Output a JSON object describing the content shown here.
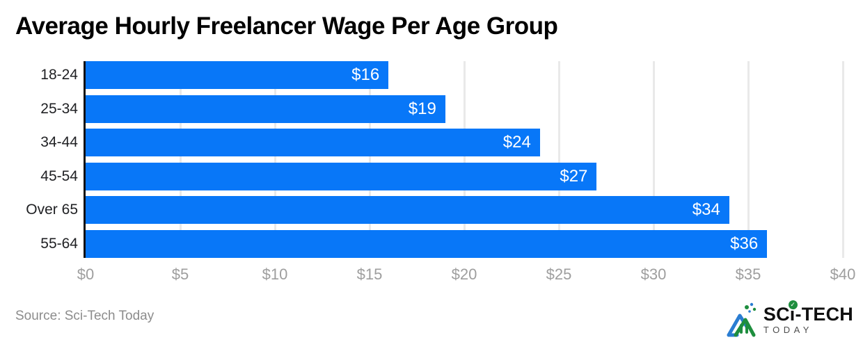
{
  "title": "Average Hourly Freelancer Wage Per Age Group",
  "source": "Source: Sci-Tech Today",
  "logo": {
    "prefix": "SC",
    "i_char": "i",
    "suffix": "-TECH",
    "subtitle": "TODAY",
    "check": "✓"
  },
  "colors": {
    "bar": "#0877f8",
    "axis": "#111111",
    "grid": "#e9e9e9",
    "tick": "#9e9e9e",
    "category": "#202124",
    "value_label": "#ffffff",
    "title": "#000000",
    "source": "#8c8c8c",
    "logo_green": "#1e8e3e",
    "logo_blue": "#2a7dd2"
  },
  "chart_data": {
    "type": "bar",
    "orientation": "horizontal",
    "title": "Average Hourly Freelancer Wage Per Age Group",
    "categories": [
      "18-24",
      "25-34",
      "34-44",
      "45-54",
      "Over 65",
      "55-64"
    ],
    "values": [
      16,
      19,
      24,
      27,
      34,
      36
    ],
    "bar_labels": [
      "$16",
      "$19",
      "$24",
      "$27",
      "$34",
      "$36"
    ],
    "x_ticks": [
      "$0",
      "$5",
      "$10",
      "$15",
      "$20",
      "$25",
      "$30",
      "$35",
      "$40"
    ],
    "x_tick_values": [
      0,
      5,
      10,
      15,
      20,
      25,
      30,
      35,
      40
    ],
    "xlim": [
      0,
      40
    ],
    "xlabel": "",
    "ylabel": "",
    "grid": true,
    "legend": false,
    "value_labels_inside_bars": true
  }
}
